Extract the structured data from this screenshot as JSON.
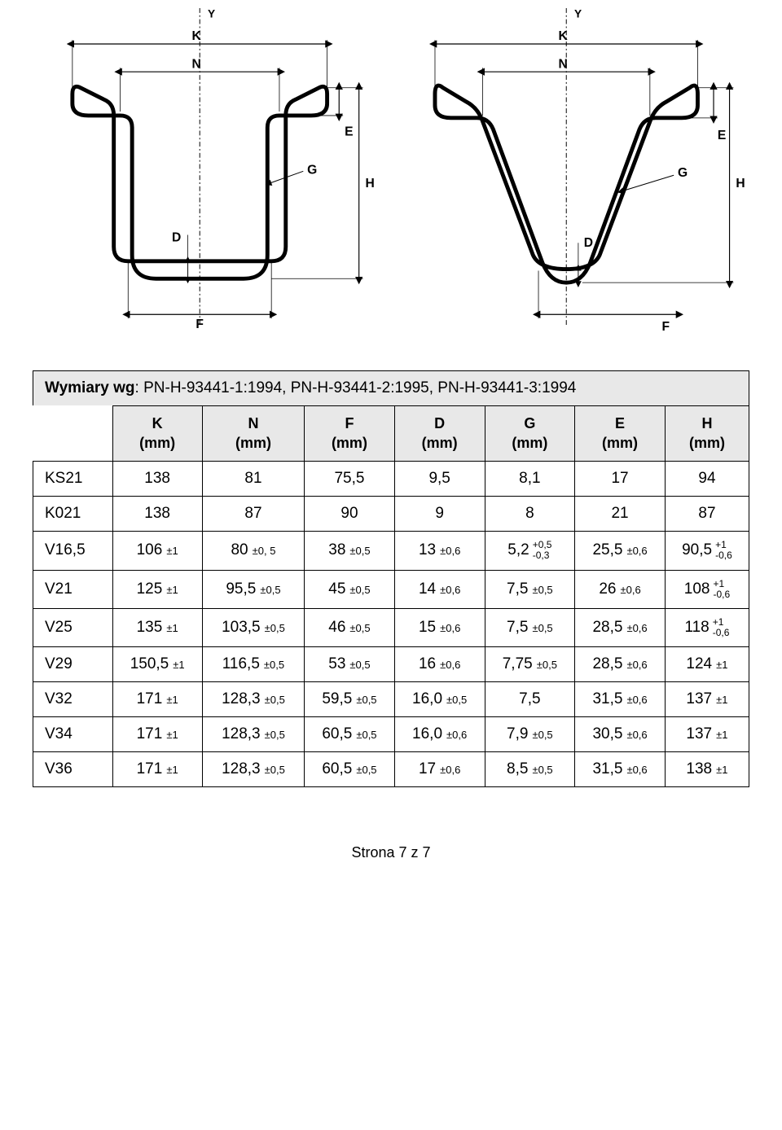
{
  "diagrams": {
    "labels": {
      "Y": "Y",
      "K": "K",
      "N": "N",
      "E": "E",
      "G": "G",
      "H": "H",
      "D": "D",
      "F": "F"
    },
    "stroke_color": "#000000",
    "profile_stroke_width": 4,
    "dim_stroke_width": 1.2,
    "dash": "4 3"
  },
  "title": {
    "label": "Wymiary wg",
    "standards": "PN-H-93441-1:1994,    PN-H-93441-2:1995,   PN-H-93441-3:1994"
  },
  "table": {
    "columns": [
      {
        "label": "",
        "unit": ""
      },
      {
        "label": "K",
        "unit": "(mm)"
      },
      {
        "label": "N",
        "unit": "(mm)"
      },
      {
        "label": "F",
        "unit": "(mm)"
      },
      {
        "label": "D",
        "unit": "(mm)"
      },
      {
        "label": "G",
        "unit": "(mm)"
      },
      {
        "label": "E",
        "unit": "(mm)"
      },
      {
        "label": "H",
        "unit": "(mm)"
      }
    ],
    "rows": [
      {
        "id": "KS21",
        "cells": [
          {
            "v": "138"
          },
          {
            "v": "81"
          },
          {
            "v": "75,5"
          },
          {
            "v": "9,5"
          },
          {
            "v": "8,1"
          },
          {
            "v": "17"
          },
          {
            "v": "94"
          }
        ]
      },
      {
        "id": "K021",
        "cells": [
          {
            "v": "138"
          },
          {
            "v": "87"
          },
          {
            "v": "90"
          },
          {
            "v": "9"
          },
          {
            "v": "8"
          },
          {
            "v": "21"
          },
          {
            "v": "87"
          }
        ]
      },
      {
        "id": "V16,5",
        "cells": [
          {
            "v": "106",
            "tol": "±1"
          },
          {
            "v": "80",
            "tol": "±0, 5"
          },
          {
            "v": "38",
            "tol": "±0,5"
          },
          {
            "v": "13",
            "tol": "±0,6"
          },
          {
            "v": "5,2",
            "stack": {
              "up": "+0,5",
              "dn": "-0,3"
            }
          },
          {
            "v": "25,5",
            "tol": "±0,6"
          },
          {
            "v": "90,5",
            "stack": {
              "up": "+1",
              "dn": "-0,6"
            }
          }
        ]
      },
      {
        "id": "V21",
        "cells": [
          {
            "v": "125",
            "tol": "±1"
          },
          {
            "v": "95,5",
            "tol": "±0,5"
          },
          {
            "v": "45",
            "tol": "±0,5"
          },
          {
            "v": "14",
            "tol": "±0,6"
          },
          {
            "v": "7,5",
            "tol": "±0,5"
          },
          {
            "v": "26",
            "tol": "±0,6"
          },
          {
            "v": "108",
            "stack": {
              "up": "+1",
              "dn": "-0,6"
            }
          }
        ]
      },
      {
        "id": "V25",
        "cells": [
          {
            "v": "135",
            "tol": "±1"
          },
          {
            "v": "103,5",
            "tol": "±0,5"
          },
          {
            "v": "46",
            "tol": "±0,5"
          },
          {
            "v": "15",
            "tol": "±0,6"
          },
          {
            "v": "7,5",
            "tol": "±0,5"
          },
          {
            "v": "28,5",
            "tol": "±0,6"
          },
          {
            "v": "118",
            "stack": {
              "up": "+1",
              "dn": "-0,6"
            }
          }
        ]
      },
      {
        "id": "V29",
        "cells": [
          {
            "v": "150,5",
            "tol": "±1"
          },
          {
            "v": "116,5",
            "tol": "±0,5"
          },
          {
            "v": "53",
            "tol": "±0,5"
          },
          {
            "v": "16",
            "tol": "±0,6"
          },
          {
            "v": "7,75",
            "tol": "±0,5"
          },
          {
            "v": "28,5",
            "tol": "±0,6"
          },
          {
            "v": "124",
            "tol": "±1"
          }
        ]
      },
      {
        "id": "V32",
        "cells": [
          {
            "v": "171",
            "tol": "±1"
          },
          {
            "v": "128,3",
            "tol": "±0,5"
          },
          {
            "v": "59,5",
            "tol": "±0,5"
          },
          {
            "v": "16,0",
            "tol": "±0,5"
          },
          {
            "v": "7,5"
          },
          {
            "v": "31,5",
            "tol": "±0,6"
          },
          {
            "v": "137",
            "tol": "±1"
          }
        ]
      },
      {
        "id": "V34",
        "cells": [
          {
            "v": "171",
            "tol": "±1"
          },
          {
            "v": "128,3",
            "tol": "±0,5"
          },
          {
            "v": "60,5",
            "tol": "±0,5"
          },
          {
            "v": "16,0",
            "tol": "±0,6"
          },
          {
            "v": "7,9",
            "tol": "±0,5"
          },
          {
            "v": "30,5",
            "tol": "±0,6"
          },
          {
            "v": "137",
            "tol": "±1"
          }
        ]
      },
      {
        "id": "V36",
        "cells": [
          {
            "v": "171",
            "tol": "±1"
          },
          {
            "v": "128,3",
            "tol": "±0,5"
          },
          {
            "v": "60,5",
            "tol": "±0,5"
          },
          {
            "v": "17",
            "tol": "±0,6"
          },
          {
            "v": "8,5",
            "tol": "±0,5"
          },
          {
            "v": "31,5",
            "tol": "±0,6"
          },
          {
            "v": "138",
            "tol": "±1"
          }
        ]
      }
    ]
  },
  "footer": "Strona 7 z 7"
}
